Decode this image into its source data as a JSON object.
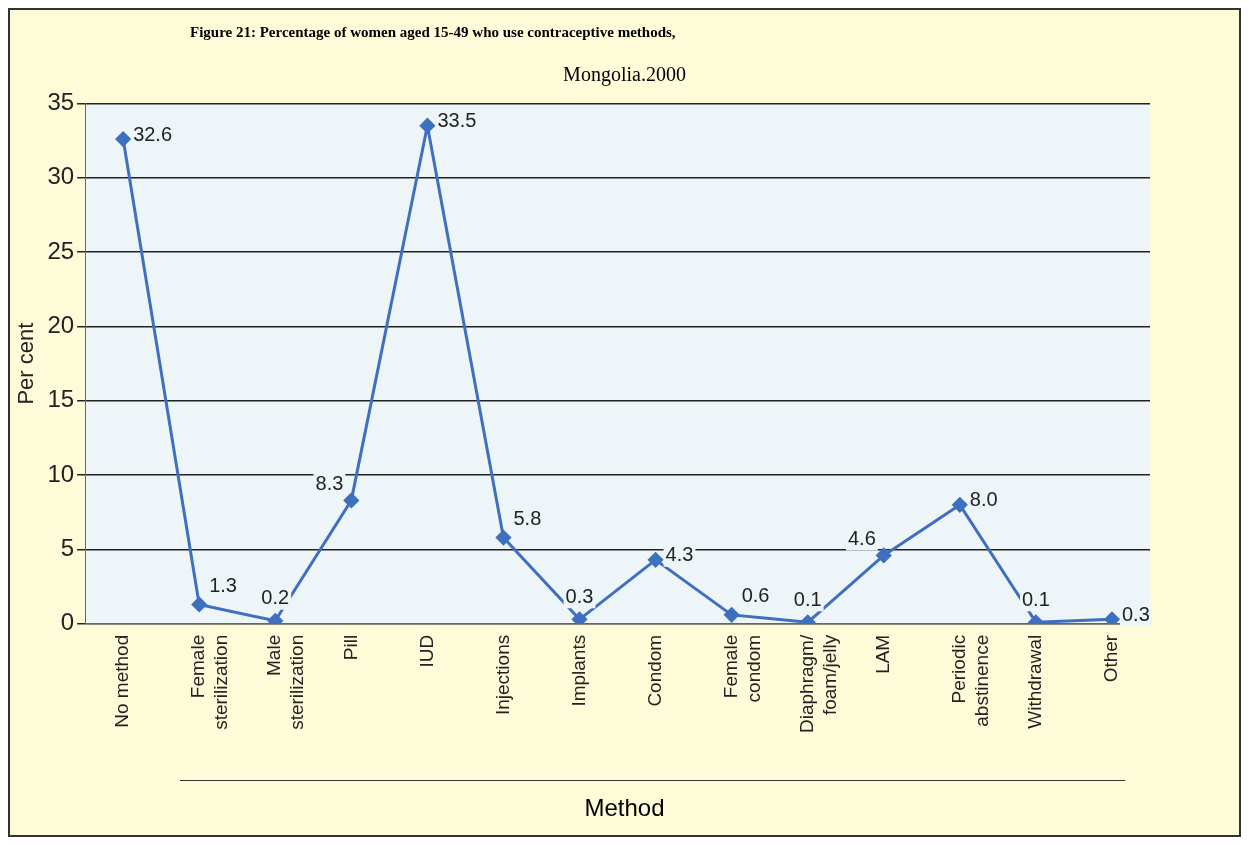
{
  "chart_data": {
    "type": "line",
    "title": "Figure 21: Percentage of women aged 15-49 who use contraceptive methods,",
    "subtitle": "Mongolia.2000",
    "xlabel": "Method",
    "ylabel": "Per cent",
    "categories": [
      "No method",
      "Female sterilization",
      "Male sterilization",
      "Pill",
      "IUD",
      "Injections",
      "Implants",
      "Condom",
      "Female condom",
      "Diaphragm/ foam/jelly",
      "LAM",
      "Periodic abstinence",
      "Withdrawal",
      "Other"
    ],
    "values": [
      32.6,
      1.3,
      0.2,
      8.3,
      33.5,
      5.8,
      0.3,
      4.3,
      0.6,
      0.1,
      4.6,
      8.0,
      0.1,
      0.3
    ],
    "value_labels": [
      "32.6",
      "1.3",
      "0.2",
      "8.3",
      "33.5",
      "5.8",
      "0.3",
      "4.3",
      "0.6",
      "0.1",
      "4.6",
      "8.0",
      "0.1",
      "0.3"
    ],
    "color": "#3f6fbf",
    "marker": "diamond",
    "line_style": "solid",
    "grid": "y",
    "legend": false,
    "ylim": [
      0,
      35
    ],
    "yticks": [
      0,
      5,
      10,
      15,
      20,
      25,
      30,
      35
    ]
  }
}
